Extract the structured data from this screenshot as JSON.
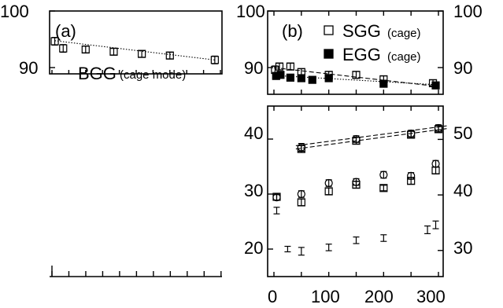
{
  "chart_data": [
    {
      "id": "a",
      "type": "scatter",
      "panel_label": "(a)",
      "y_tick_labels": [
        "100",
        "90"
      ],
      "ylim": [
        85,
        100
      ],
      "xlim": [
        0,
        300
      ],
      "annotation": {
        "main": "BGG",
        "sub": "(cage mode)"
      },
      "series": [
        {
          "name": "BGG (cage mode)",
          "marker": "open-square",
          "x": [
            5,
            20,
            60,
            110,
            160,
            210,
            290
          ],
          "y": [
            94.5,
            93.2,
            93.0,
            92.6,
            92.2,
            91.9,
            91.1
          ],
          "err": [
            0.7,
            0.7,
            0.6,
            0.6,
            0.6,
            0.6,
            0.7
          ]
        }
      ],
      "fit_lines": [
        {
          "style": "dotted",
          "x": [
            5,
            290
          ],
          "y": [
            94.6,
            91.1
          ]
        }
      ]
    },
    {
      "id": "b-top",
      "type": "scatter",
      "panel_label": "(b)",
      "y_tick_labels_left": [
        "100",
        "90"
      ],
      "y_tick_labels_right": [
        "100",
        "90"
      ],
      "ylim": [
        85,
        100
      ],
      "xlim": [
        -10,
        315
      ],
      "legend": [
        {
          "marker": "open-square",
          "label": "SGG",
          "sub": "(cage)"
        },
        {
          "marker": "filled-square",
          "label": "EGG",
          "sub": "(cage)"
        }
      ],
      "legend_position": "top-right",
      "series": [
        {
          "name": "SGG (cage)",
          "marker": "open-square",
          "x": [
            2,
            10,
            30,
            50,
            100,
            150,
            200,
            290
          ],
          "y": [
            89.4,
            90.0,
            90.0,
            89.0,
            88.5,
            88.5,
            87.7,
            87.0
          ],
          "err": [
            0.7,
            0.6,
            0.6,
            0.6,
            0.6,
            0.6,
            0.6,
            0.6
          ]
        },
        {
          "name": "EGG (cage)",
          "marker": "filled-square",
          "x": [
            4,
            12,
            30,
            50,
            70,
            100,
            200,
            295
          ],
          "y": [
            88.3,
            88.5,
            88.0,
            87.9,
            87.6,
            87.9,
            86.9,
            86.6
          ],
          "err": [
            0.6,
            0.6,
            0.6,
            0.6,
            0.5,
            0.6,
            0.6,
            0.6
          ]
        }
      ],
      "fit_lines": [
        {
          "style": "dashed",
          "x": [
            0,
            300
          ],
          "y": [
            89.8,
            86.4
          ]
        },
        {
          "style": "dotted",
          "x": [
            0,
            300
          ],
          "y": [
            88.4,
            86.7
          ]
        }
      ]
    },
    {
      "id": "b-bottom",
      "type": "scatter",
      "x_tick_labels": [
        "0",
        "100",
        "200",
        "300"
      ],
      "xlim": [
        -10,
        315
      ],
      "y_left": {
        "tick_labels": [
          "40",
          "30",
          "20"
        ],
        "ylim": [
          15,
          46
        ]
      },
      "y_right": {
        "tick_labels": [
          "50",
          "40",
          "30"
        ],
        "ylim": [
          25.3,
          56
        ]
      },
      "series": [
        {
          "name": "circles",
          "axis": "left",
          "marker": "open-circle",
          "x": [
            5,
            50,
            100,
            150,
            200,
            250,
            295
          ],
          "y": [
            29.4,
            30.0,
            32.0,
            32.2,
            33.5,
            33.3,
            35.5
          ],
          "err": [
            0.5,
            0.6,
            0.6,
            0.6,
            0.6,
            0.6,
            0.6
          ]
        },
        {
          "name": "squares",
          "axis": "left",
          "marker": "open-square",
          "x": [
            5,
            50,
            100,
            150,
            200,
            250,
            295
          ],
          "y": [
            29.5,
            28.5,
            30.5,
            31.7,
            31.1,
            32.4,
            34.3
          ],
          "err": [
            0.6,
            0.6,
            0.6,
            0.6,
            0.5,
            0.6,
            0.6
          ]
        },
        {
          "name": "bottom-bars",
          "axis": "left",
          "marker": "error-bar",
          "x": [
            5,
            25,
            50,
            100,
            150,
            200,
            280,
            295
          ],
          "y": [
            27.0,
            20.0,
            19.6,
            20.3,
            21.6,
            22.0,
            23.5,
            24.4
          ],
          "err": [
            0.6,
            0.5,
            0.7,
            0.6,
            0.6,
            0.6,
            0.7,
            0.7
          ]
        },
        {
          "name": "upper-points",
          "axis": "left",
          "marker": "open-circle",
          "x": [
            50,
            150,
            250,
            300
          ],
          "y": [
            38.5,
            40.0,
            41.0,
            42.0
          ],
          "err": [
            0.7,
            0.6,
            0.6,
            0.6
          ]
        },
        {
          "name": "upper-points-squares",
          "axis": "left",
          "marker": "open-square",
          "x": [
            50,
            150,
            250,
            300
          ],
          "y": [
            38.2,
            39.7,
            40.8,
            41.8
          ],
          "err": [
            0.6,
            0.6,
            0.6,
            0.6
          ]
        }
      ],
      "fit_lines": [
        {
          "style": "dashed",
          "x": [
            40,
            315
          ],
          "y": [
            38.8,
            42.4
          ],
          "axis": "left"
        },
        {
          "style": "dashed",
          "x": [
            40,
            315
          ],
          "y": [
            38.2,
            41.9
          ],
          "axis": "left"
        }
      ]
    }
  ]
}
